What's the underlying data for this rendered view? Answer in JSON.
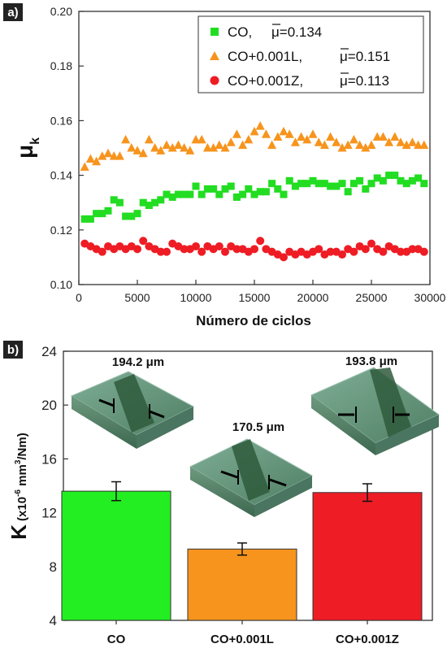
{
  "panel_a": {
    "panel_label": "a)",
    "chart_data": {
      "type": "scatter",
      "xlabel": "Número de ciclos",
      "ylabel": "μ",
      "ylabel_subscript": "k",
      "xlim": [
        0,
        30000
      ],
      "ylim": [
        0.1,
        0.2
      ],
      "x_ticks": [
        "0",
        "5000",
        "10000",
        "15000",
        "20000",
        "25000",
        "30000"
      ],
      "y_ticks": [
        "0.10",
        "0.12",
        "0.14",
        "0.16",
        "0.18",
        "0.20"
      ],
      "legend_position": "top-right",
      "grid": false,
      "series": [
        {
          "name": "CO",
          "legend_label": "CO,",
          "legend_value": "μ=0.134",
          "color": "#22dd22",
          "marker": "square",
          "x": [
            500,
            1000,
            1500,
            2000,
            2500,
            3000,
            3500,
            4000,
            4500,
            5000,
            5500,
            6000,
            6500,
            7000,
            7500,
            8000,
            8500,
            9000,
            9500,
            10000,
            10500,
            11000,
            11500,
            12000,
            12500,
            13000,
            13500,
            14000,
            14500,
            15000,
            15500,
            16000,
            16500,
            17000,
            17500,
            18000,
            18500,
            19000,
            19500,
            20000,
            20500,
            21000,
            21500,
            22000,
            22500,
            23000,
            23500,
            24000,
            24500,
            25000,
            25500,
            26000,
            26500,
            27000,
            27500,
            28000,
            28500,
            29000,
            29500
          ],
          "y": [
            0.124,
            0.124,
            0.126,
            0.126,
            0.127,
            0.131,
            0.13,
            0.125,
            0.125,
            0.126,
            0.13,
            0.129,
            0.13,
            0.131,
            0.133,
            0.132,
            0.133,
            0.133,
            0.133,
            0.136,
            0.133,
            0.135,
            0.135,
            0.133,
            0.135,
            0.136,
            0.132,
            0.133,
            0.135,
            0.133,
            0.134,
            0.134,
            0.137,
            0.135,
            0.133,
            0.138,
            0.136,
            0.137,
            0.137,
            0.138,
            0.137,
            0.137,
            0.136,
            0.136,
            0.137,
            0.134,
            0.137,
            0.138,
            0.135,
            0.137,
            0.139,
            0.138,
            0.14,
            0.14,
            0.138,
            0.137,
            0.138,
            0.139,
            0.137
          ]
        },
        {
          "name": "CO+0.001L",
          "legend_label": "CO+0.001L,",
          "legend_value": "μ=0.151",
          "color": "#f7941d",
          "marker": "triangle",
          "x": [
            500,
            1000,
            1500,
            2000,
            2500,
            3000,
            3500,
            4000,
            4500,
            5000,
            5500,
            6000,
            6500,
            7000,
            7500,
            8000,
            8500,
            9000,
            9500,
            10000,
            10500,
            11000,
            11500,
            12000,
            12500,
            13000,
            13500,
            14000,
            14500,
            15000,
            15500,
            16000,
            16500,
            17000,
            17500,
            18000,
            18500,
            19000,
            19500,
            20000,
            20500,
            21000,
            21500,
            22000,
            22500,
            23000,
            23500,
            24000,
            24500,
            25000,
            25500,
            26000,
            26500,
            27000,
            27500,
            28000,
            28500,
            29000,
            29500
          ],
          "y": [
            0.143,
            0.146,
            0.145,
            0.147,
            0.148,
            0.147,
            0.147,
            0.153,
            0.15,
            0.149,
            0.148,
            0.153,
            0.15,
            0.149,
            0.151,
            0.15,
            0.151,
            0.15,
            0.149,
            0.153,
            0.153,
            0.15,
            0.15,
            0.151,
            0.15,
            0.152,
            0.155,
            0.151,
            0.153,
            0.156,
            0.158,
            0.155,
            0.151,
            0.154,
            0.156,
            0.155,
            0.152,
            0.154,
            0.153,
            0.155,
            0.152,
            0.151,
            0.154,
            0.152,
            0.15,
            0.151,
            0.153,
            0.151,
            0.15,
            0.151,
            0.154,
            0.154,
            0.152,
            0.154,
            0.152,
            0.151,
            0.152,
            0.151,
            0.151
          ]
        },
        {
          "name": "CO+0.001Z",
          "legend_label": "CO+0.001Z,",
          "legend_value": "μ=0.113",
          "color": "#ee1c24",
          "marker": "circle",
          "x": [
            500,
            1000,
            1500,
            2000,
            2500,
            3000,
            3500,
            4000,
            4500,
            5000,
            5500,
            6000,
            6500,
            7000,
            7500,
            8000,
            8500,
            9000,
            9500,
            10000,
            10500,
            11000,
            11500,
            12000,
            12500,
            13000,
            13500,
            14000,
            14500,
            15000,
            15500,
            16000,
            16500,
            17000,
            17500,
            18000,
            18500,
            19000,
            19500,
            20000,
            20500,
            21000,
            21500,
            22000,
            22500,
            23000,
            23500,
            24000,
            24500,
            25000,
            25500,
            26000,
            26500,
            27000,
            27500,
            28000,
            28500,
            29000,
            29500
          ],
          "y": [
            0.115,
            0.114,
            0.113,
            0.112,
            0.114,
            0.113,
            0.114,
            0.113,
            0.114,
            0.113,
            0.116,
            0.114,
            0.113,
            0.112,
            0.112,
            0.115,
            0.114,
            0.113,
            0.113,
            0.114,
            0.112,
            0.114,
            0.113,
            0.114,
            0.112,
            0.114,
            0.113,
            0.113,
            0.112,
            0.113,
            0.116,
            0.113,
            0.112,
            0.111,
            0.11,
            0.112,
            0.111,
            0.112,
            0.111,
            0.112,
            0.113,
            0.111,
            0.112,
            0.112,
            0.111,
            0.113,
            0.112,
            0.114,
            0.113,
            0.115,
            0.113,
            0.112,
            0.114,
            0.113,
            0.112,
            0.112,
            0.113,
            0.113,
            0.112
          ]
        }
      ]
    }
  },
  "panel_b": {
    "panel_label": "b)",
    "chart_data": {
      "type": "bar",
      "categories": [
        "CO",
        "CO+0.001L",
        "CO+0.001Z"
      ],
      "values": [
        13.6,
        9.3,
        13.5
      ],
      "errors": [
        0.7,
        0.45,
        0.65
      ],
      "colors": [
        "#22ee22",
        "#f7941d",
        "#ee1c24"
      ],
      "ylabel_main": "K",
      "ylabel_unit": "(x10",
      "ylabel_exp1": "-6",
      "ylabel_mid": " mm",
      "ylabel_exp2": "3",
      "ylabel_tail": "/Nm)",
      "ylim": [
        4,
        24
      ],
      "y_ticks": [
        "4",
        "8",
        "12",
        "16",
        "20",
        "24"
      ],
      "annotations": [
        "194.2 μm",
        "170.5 μm",
        "193.8 μm"
      ],
      "image_colors": {
        "surface": "#5f8f73",
        "track": "#2f5a3c",
        "edge": "#9bbfae"
      }
    }
  }
}
